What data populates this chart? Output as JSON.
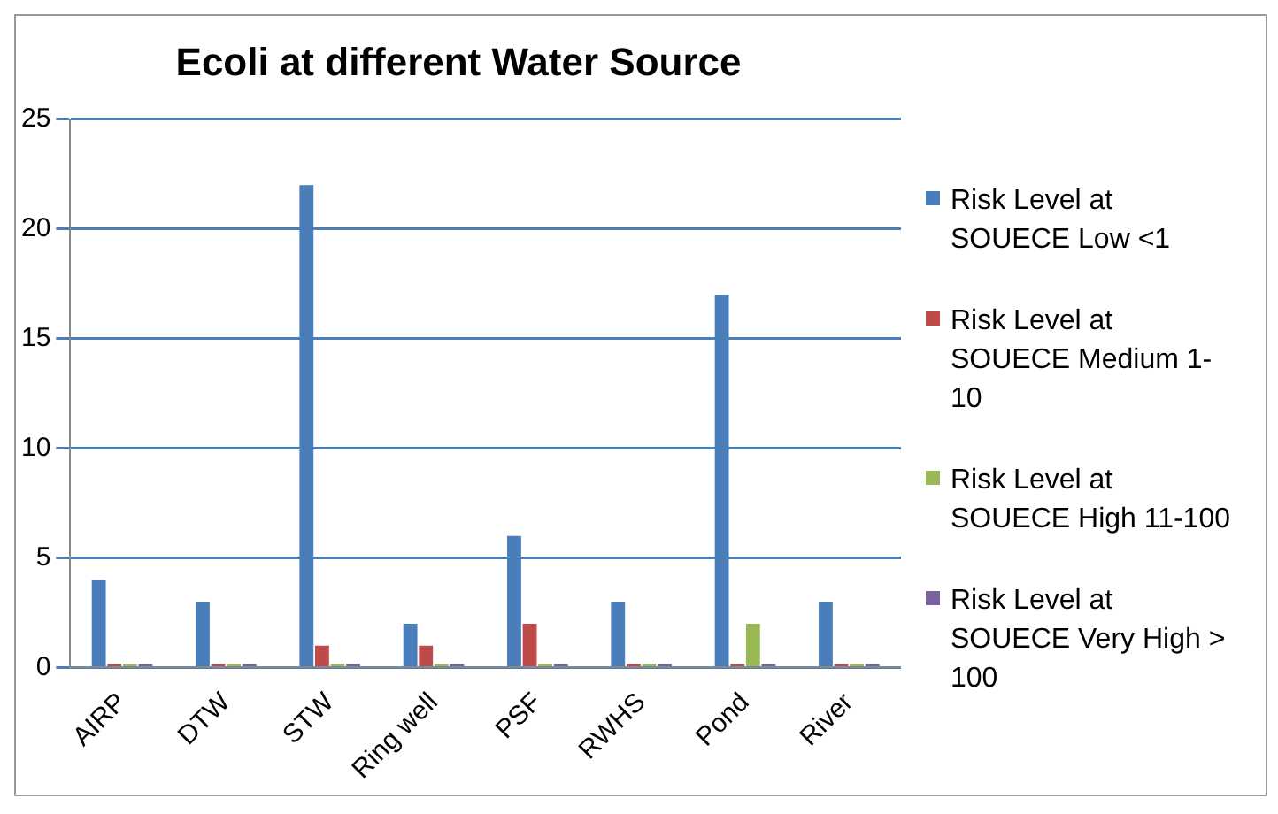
{
  "chart_data": {
    "type": "bar",
    "title": "Ecoli at different Water Source",
    "categories": [
      "AIRP",
      "DTW",
      "STW",
      "Ring well",
      "PSF",
      "RWHS",
      "Pond",
      "River"
    ],
    "series": [
      {
        "name": "Risk Level at SOUECE Low <1",
        "color": "#4a7ebb",
        "values": [
          4,
          3,
          22,
          2,
          6,
          3,
          17,
          3
        ]
      },
      {
        "name": "Risk Level at SOUECE Medium 1-10",
        "color": "#be4b48",
        "values": [
          0,
          0,
          1,
          1,
          2,
          0,
          0,
          0
        ]
      },
      {
        "name": "Risk Level at SOUECE High 11-100",
        "color": "#98b954",
        "values": [
          0,
          0,
          0,
          0,
          0,
          0,
          2,
          0
        ]
      },
      {
        "name": "Risk Level at SOUECE Very High  > 100",
        "color": "#7d60a0",
        "values": [
          0,
          0,
          0,
          0,
          0,
          0,
          0,
          0
        ]
      }
    ],
    "ylim": [
      0,
      25
    ],
    "yticks": [
      0,
      5,
      10,
      15,
      20,
      25
    ],
    "grid": "y",
    "legend": "right"
  }
}
